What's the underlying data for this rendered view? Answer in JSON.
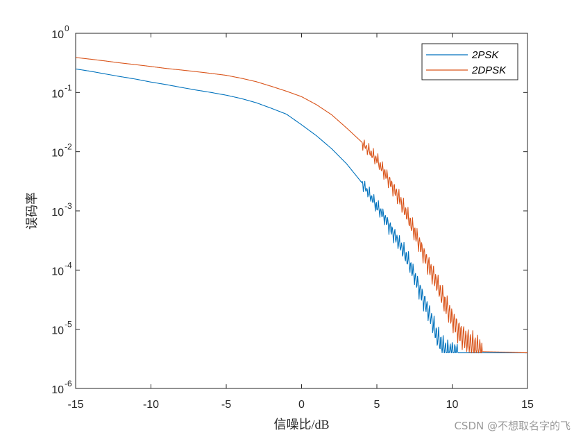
{
  "chart_data": {
    "type": "line",
    "title": "",
    "xlabel": "信噪比/dB",
    "ylabel": "误码率",
    "xlim": [
      -15,
      15
    ],
    "ylim": [
      1e-06,
      1
    ],
    "y_scale": "log",
    "x_ticks": [
      -15,
      -10,
      -5,
      0,
      5,
      10,
      15
    ],
    "x_tick_labels": [
      "-15",
      "-10",
      "-5",
      "0",
      "5",
      "10",
      "15"
    ],
    "y_ticks": [
      {
        "value": 1,
        "base": "10",
        "exp": "0"
      },
      {
        "value": 0.1,
        "base": "10",
        "exp": "-1"
      },
      {
        "value": 0.01,
        "base": "10",
        "exp": "-2"
      },
      {
        "value": 0.001,
        "base": "10",
        "exp": "-3"
      },
      {
        "value": 0.0001,
        "base": "10",
        "exp": "-4"
      },
      {
        "value": 1e-05,
        "base": "10",
        "exp": "-5"
      },
      {
        "value": 1e-06,
        "base": "10",
        "exp": "-6"
      }
    ],
    "grid": false,
    "legend_position": "top-right",
    "series": [
      {
        "name": "2PSK",
        "color": "#0072BD",
        "x": [
          -15,
          -14,
          -13,
          -12,
          -11,
          -10,
          -9,
          -8,
          -7,
          -6,
          -5,
          -4,
          -3,
          -2,
          -1,
          0,
          1,
          2,
          3,
          4,
          5,
          5.5,
          6,
          6.5,
          7,
          7.5,
          8,
          8.5,
          9,
          9.5,
          10,
          10.5,
          15
        ],
        "y": [
          0.25,
          0.228,
          0.205,
          0.185,
          0.168,
          0.15,
          0.136,
          0.122,
          0.11,
          0.1,
          0.09,
          0.079,
          0.067,
          0.054,
          0.043,
          0.0285,
          0.0185,
          0.0112,
          0.0062,
          0.003,
          0.0012,
          0.00078,
          0.00045,
          0.00028,
          0.00016,
          7.8e-05,
          3.6e-05,
          1.8e-05,
          7.5e-06,
          4.5e-06,
          4e-06,
          4e-06,
          4e-06
        ]
      },
      {
        "name": "2DPSK",
        "color": "#D95319",
        "x": [
          -15,
          -14,
          -13,
          -12,
          -11,
          -10,
          -9,
          -8,
          -7,
          -6,
          -5,
          -4,
          -3,
          -2,
          -1,
          0,
          1,
          2,
          3,
          4,
          5,
          5.5,
          6,
          6.5,
          7,
          7.5,
          8,
          8.5,
          9,
          9.5,
          10,
          10.5,
          11,
          12,
          15
        ],
        "y": [
          0.39,
          0.365,
          0.34,
          0.315,
          0.295,
          0.275,
          0.255,
          0.24,
          0.225,
          0.21,
          0.195,
          0.174,
          0.152,
          0.127,
          0.105,
          0.085,
          0.062,
          0.042,
          0.025,
          0.0145,
          0.0072,
          0.0045,
          0.0027,
          0.0016,
          0.00085,
          0.00044,
          0.00022,
          0.000108,
          5.8e-05,
          2.8e-05,
          1.5e-05,
          8.5e-06,
          6.2e-06,
          4.2e-06,
          4e-06
        ]
      }
    ]
  },
  "watermark": "CSDN @不想取名字的飞"
}
